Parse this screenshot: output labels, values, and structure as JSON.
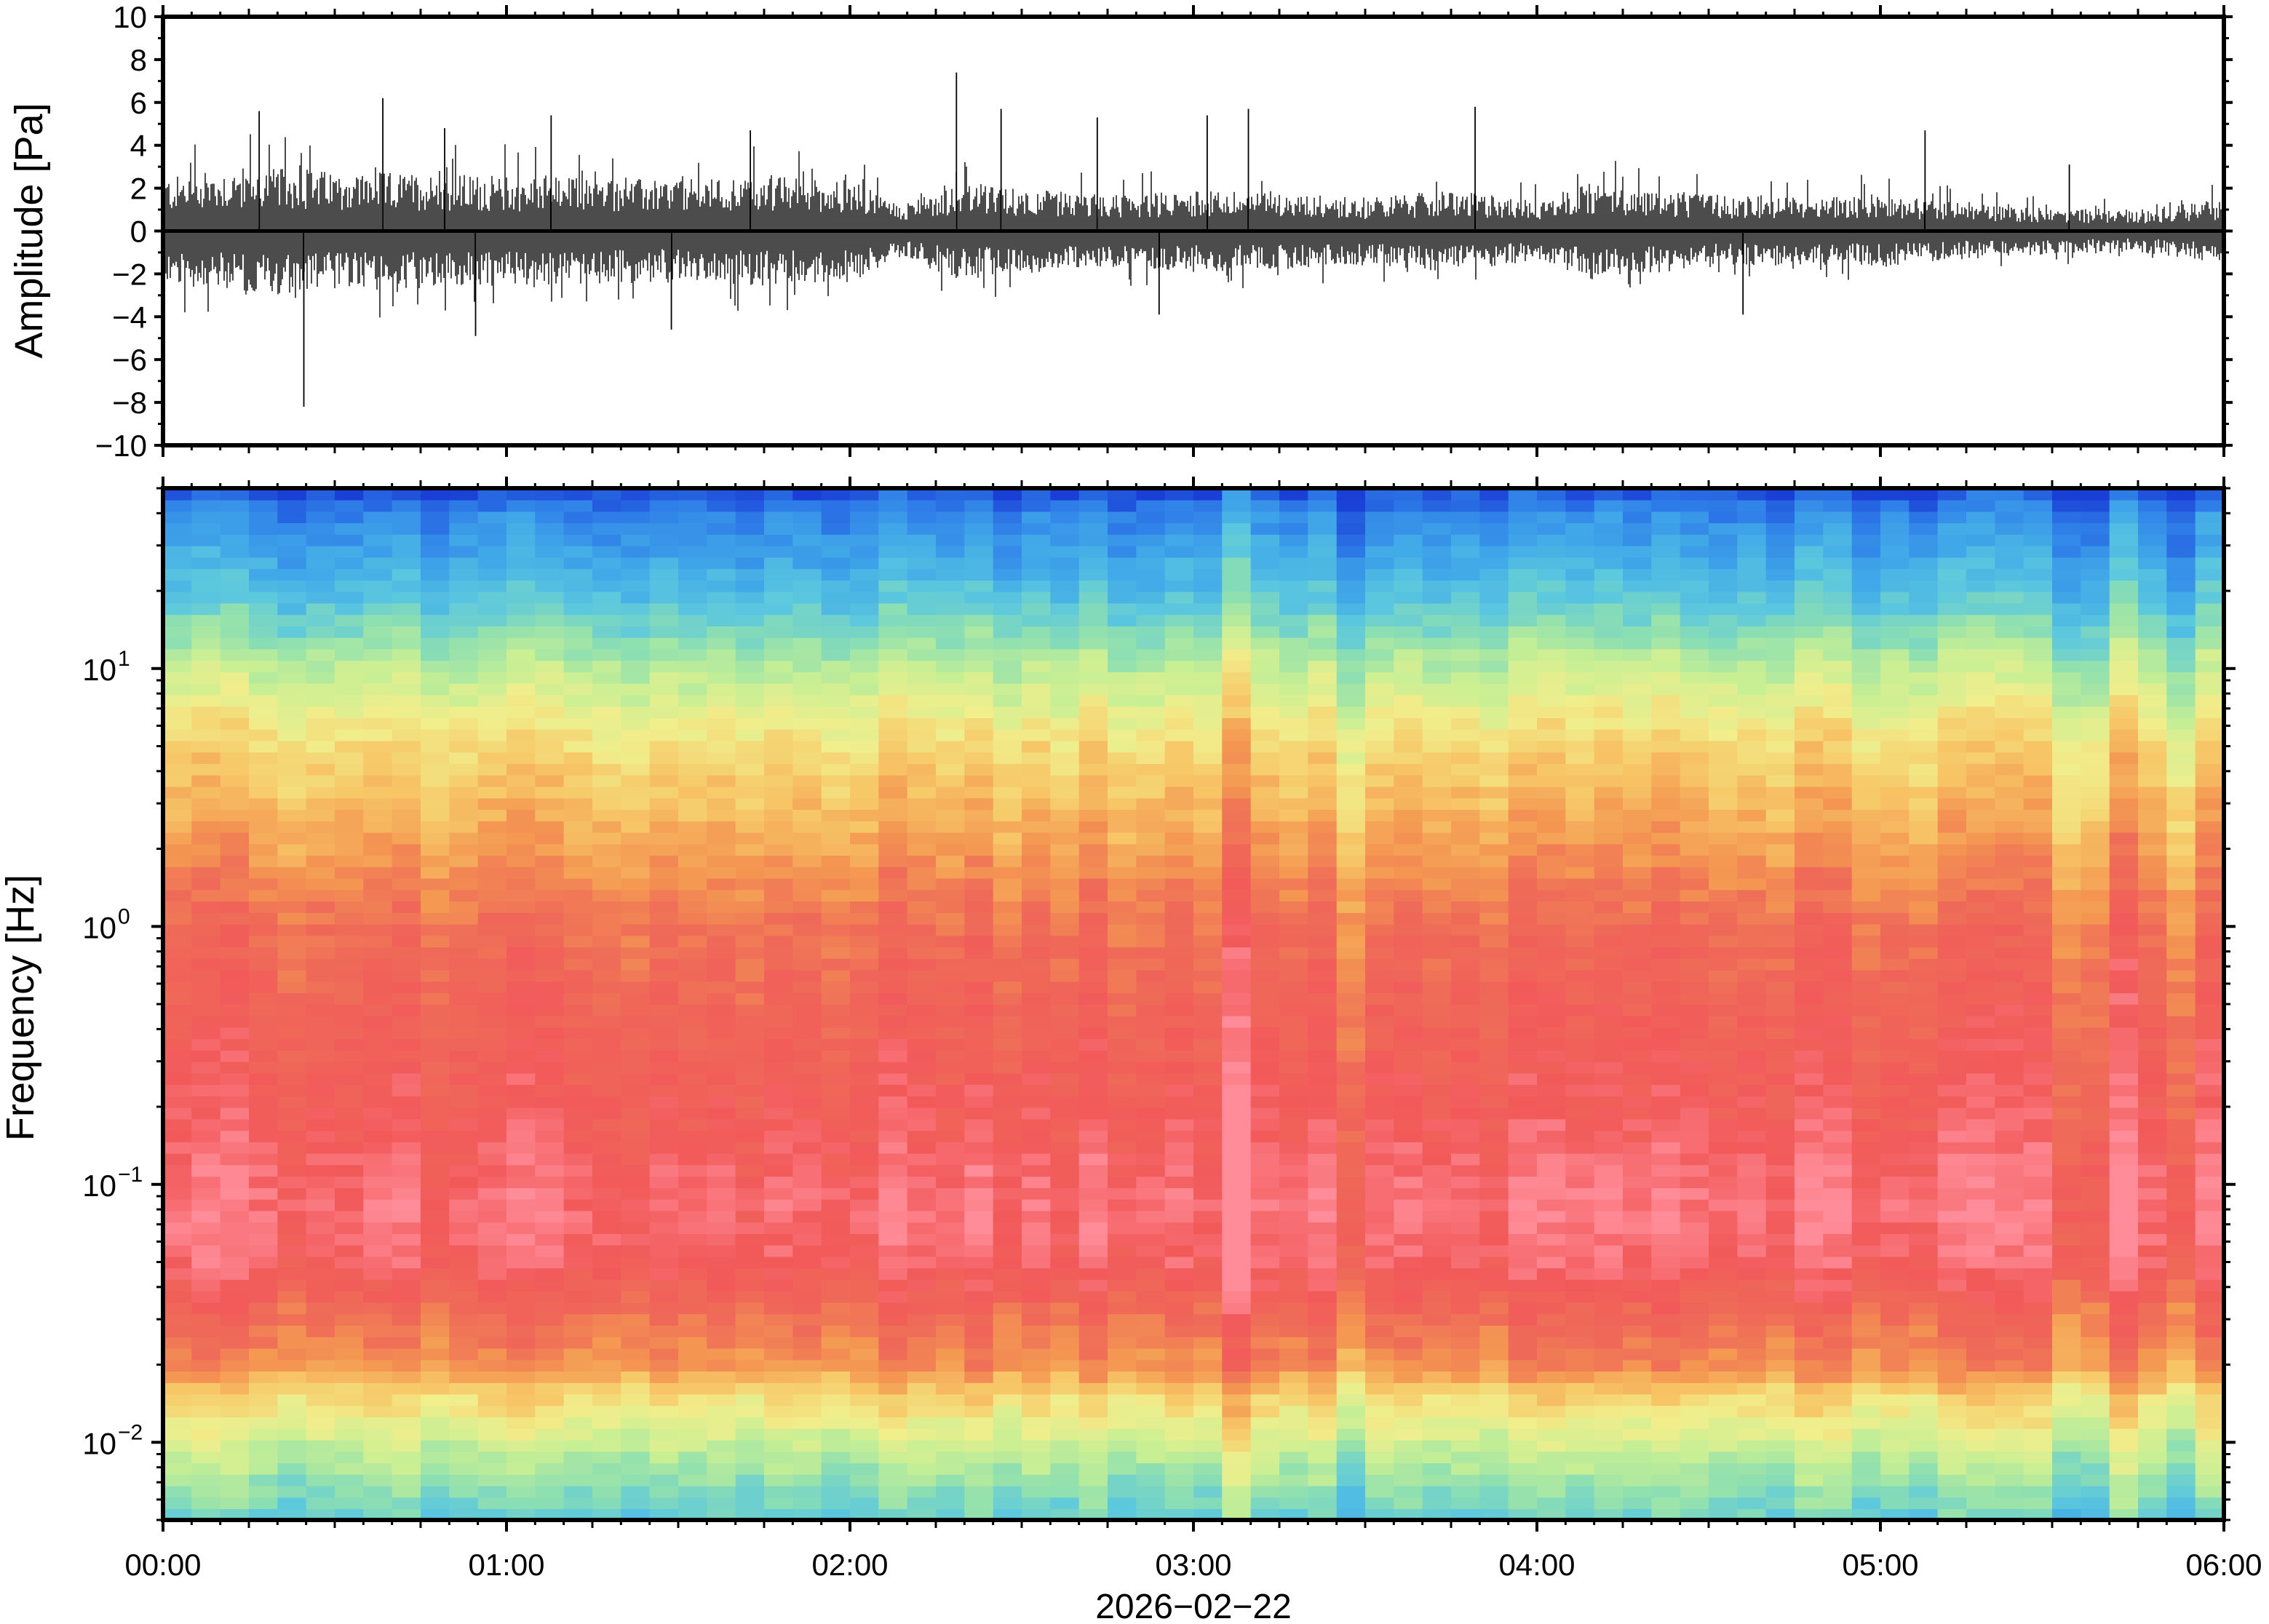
{
  "chart_data": [
    {
      "type": "line",
      "panel": "waveform",
      "ylabel": "Amplitude [Pa]",
      "ylim": [
        -10,
        10
      ],
      "y_ticks": [
        10,
        8,
        6,
        4,
        2,
        0,
        -2,
        -4,
        -6,
        -8,
        -10
      ],
      "y_tick_labels": [
        "10",
        "8",
        "6",
        "4",
        "2",
        "0",
        "−2",
        "−4",
        "−6",
        "−8",
        "−10"
      ],
      "xlim": [
        "00:00",
        "06:00"
      ],
      "line_color": "#000000",
      "series": [
        {
          "x_unit": "hours since 2026-02-22 00:00",
          "envelope_hours": [
            0.0,
            0.25,
            0.5,
            0.75,
            1.0,
            1.25,
            1.5,
            1.75,
            2.0,
            2.15,
            2.3,
            2.5,
            2.75,
            3.0,
            3.25,
            3.5,
            3.75,
            4.0,
            4.15,
            4.25,
            4.5,
            4.75,
            5.0,
            5.25,
            5.5,
            5.75,
            6.0
          ],
          "envelope_amplitude": [
            2.5,
            3.0,
            2.8,
            2.7,
            2.6,
            2.5,
            2.4,
            2.6,
            2.4,
            1.2,
            2.2,
            2.0,
            1.7,
            1.9,
            1.8,
            1.6,
            1.9,
            1.4,
            2.3,
            2.1,
            1.7,
            1.6,
            1.7,
            1.3,
            1.1,
            1.0,
            1.5
          ],
          "spikes": [
            {
              "hours": 0.41,
              "value": -8.2
            },
            {
              "hours": 0.28,
              "value": 5.6
            },
            {
              "hours": 0.64,
              "value": 6.2
            },
            {
              "hours": 0.82,
              "value": 4.8
            },
            {
              "hours": 0.91,
              "value": -4.9
            },
            {
              "hours": 1.13,
              "value": 5.4
            },
            {
              "hours": 1.48,
              "value": -4.6
            },
            {
              "hours": 1.71,
              "value": 4.7
            },
            {
              "hours": 2.31,
              "value": 7.4
            },
            {
              "hours": 2.44,
              "value": 5.7
            },
            {
              "hours": 2.72,
              "value": 5.3
            },
            {
              "hours": 2.9,
              "value": -3.9
            },
            {
              "hours": 3.04,
              "value": 5.4
            },
            {
              "hours": 3.16,
              "value": 5.7
            },
            {
              "hours": 3.82,
              "value": 5.8
            },
            {
              "hours": 4.6,
              "value": -3.9
            },
            {
              "hours": 5.13,
              "value": 4.7
            },
            {
              "hours": 5.55,
              "value": 3.1
            }
          ]
        }
      ]
    },
    {
      "type": "heatmap",
      "panel": "spectrogram",
      "ylabel": "Frequency [Hz]",
      "yscale": "log",
      "ylim": [
        0.005,
        50
      ],
      "y_ticks": [
        0.01,
        0.1,
        1,
        10
      ],
      "y_tick_labels": [
        {
          "base": "10",
          "exp": "−2"
        },
        {
          "base": "10",
          "exp": "−1"
        },
        {
          "base": "10",
          "exp": "0"
        },
        {
          "base": "10",
          "exp": "1"
        }
      ],
      "x_tick_labels": [
        "00:00",
        "01:00",
        "02:00",
        "03:00",
        "04:00",
        "05:00",
        "06:00"
      ],
      "xlabel": "2026−02−22",
      "colormap": [
        "#1a3fd6",
        "#2e7de8",
        "#41a9e8",
        "#5cc8de",
        "#8fe0b0",
        "#c8ef94",
        "#f1ee8c",
        "#f7c767",
        "#f49852",
        "#ef6b58",
        "#f25a5a",
        "#ff8c98"
      ],
      "colormap_note": "low power → high power",
      "power_profile_hz": [
        0.005,
        0.007,
        0.01,
        0.015,
        0.02,
        0.03,
        0.05,
        0.08,
        0.1,
        0.2,
        0.5,
        1,
        2,
        5,
        10,
        20,
        40,
        50
      ],
      "power_profile_value": [
        0.3,
        0.38,
        0.48,
        0.6,
        0.75,
        0.82,
        0.93,
        0.96,
        0.95,
        0.9,
        0.86,
        0.82,
        0.72,
        0.6,
        0.45,
        0.25,
        0.12,
        0.02
      ],
      "brighter_columns_hours": [
        2.18,
        3.14,
        5.75
      ],
      "bluer_columns_hours": [
        2.15,
        3.45,
        5.58,
        5.85
      ]
    }
  ]
}
